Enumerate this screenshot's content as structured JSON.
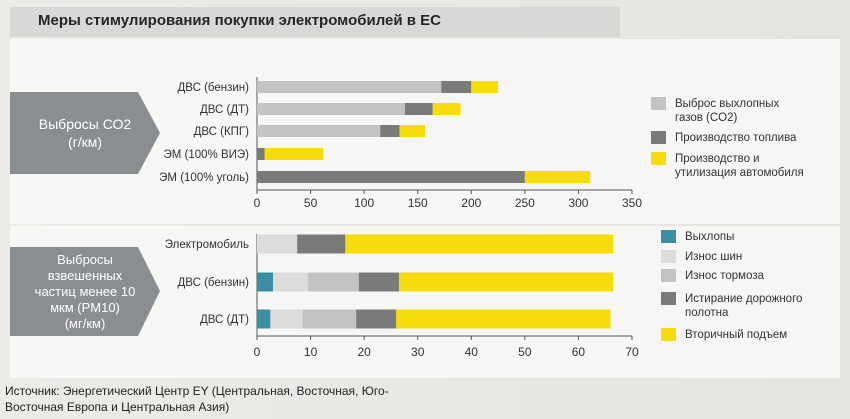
{
  "title": "Меры стимулирования покупки электромобилей в ЕС",
  "source": "Источник: Энергетический Центр EY (Центральная, Восточная, Юго-Восточная Европа и Центральная Азия)",
  "colors": {
    "grey_light": "#c3c3c3",
    "grey_dark": "#7a7a7a",
    "yellow": "#f6dc0a",
    "teal": "#3c8ea3",
    "white_grey": "#dcdcdc",
    "arrow": "#8b8e91"
  },
  "chart_data": [
    {
      "type": "bar",
      "orientation": "horizontal",
      "stacked": true,
      "label": "Выбросы СО2\n(г/км)",
      "categories": [
        "ДВС (бензин)",
        "ДВС (ДТ)",
        "ДВС (КПГ)",
        "ЭМ (100% ВИЭ)",
        "ЭМ (100% уголь)"
      ],
      "series": [
        {
          "name": "Выброс выхлопных газов (CO2)",
          "color": "#c3c3c3",
          "values": [
            172,
            138,
            115,
            0,
            0
          ]
        },
        {
          "name": "Производство топлива",
          "color": "#7a7a7a",
          "values": [
            28,
            26,
            18,
            7,
            250
          ]
        },
        {
          "name": "Производство и утилизация автомобиля",
          "color": "#f6dc0a",
          "values": [
            25,
            26,
            24,
            55,
            61
          ]
        }
      ],
      "xlim": [
        0,
        350
      ],
      "xticks": [
        0,
        50,
        100,
        150,
        200,
        250,
        300,
        350
      ],
      "legend_position": "right"
    },
    {
      "type": "bar",
      "orientation": "horizontal",
      "stacked": true,
      "label": "Выбросы\nвзвешенных\nчастиц менее 10\nмкм (PM10)\n(мг/км)",
      "categories": [
        "Электромобиль",
        "ДВС (бензин)",
        "ДВС (ДТ)"
      ],
      "series": [
        {
          "name": "Выхлопы",
          "color": "#3c8ea3",
          "values": [
            0,
            3,
            2.5
          ]
        },
        {
          "name": "Износ шин",
          "color": "#dcdcdc",
          "values": [
            7.5,
            6.5,
            6
          ]
        },
        {
          "name": "Износ тормоза",
          "color": "#c3c3c3",
          "values": [
            0,
            9.5,
            10
          ]
        },
        {
          "name": "Истирание дорожного полотна",
          "color": "#7a7a7a",
          "values": [
            9,
            7.5,
            7.5
          ]
        },
        {
          "name": "Вторичный подъем",
          "color": "#f6dc0a",
          "values": [
            50,
            40,
            40
          ]
        }
      ],
      "xlim": [
        0,
        70
      ],
      "xticks": [
        0,
        10,
        20,
        30,
        40,
        50,
        60,
        70
      ],
      "legend_position": "right"
    }
  ]
}
